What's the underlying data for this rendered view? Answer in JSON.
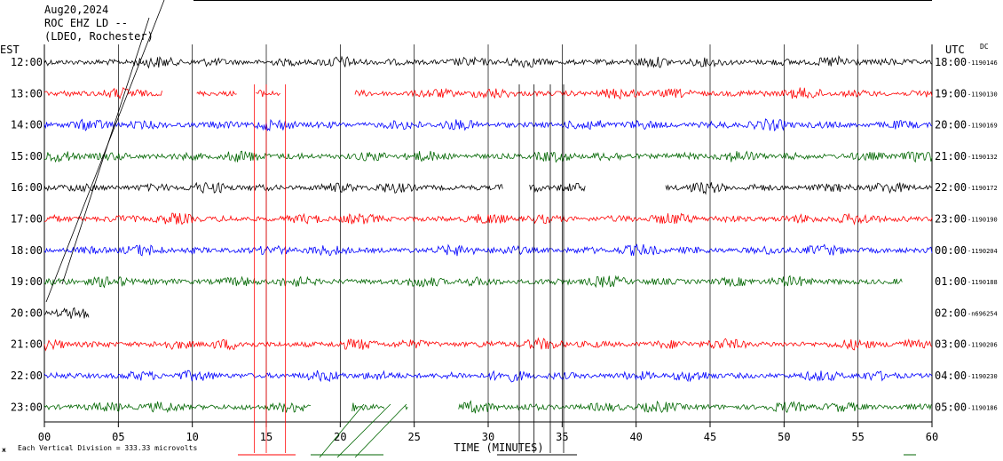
{
  "header": {
    "date": "Aug20,2024",
    "station": "ROC EHZ LD --",
    "network": "(LDEO, Rochester)"
  },
  "left_tz": "EST",
  "right_tz": "UTC",
  "dc_label": "DC",
  "footer": {
    "scale_note": "Each Vertical Division = 333.33 microvolts",
    "corner_mark": "ж"
  },
  "chart_data": {
    "type": "line",
    "title": "",
    "xlabel": "TIME (MINUTES)",
    "ylabel": "",
    "xlim": [
      0,
      60
    ],
    "x_ticks": [
      "00",
      "05",
      "10",
      "15",
      "20",
      "25",
      "30",
      "35",
      "40",
      "45",
      "50",
      "55",
      "60"
    ],
    "grid": true,
    "colors": [
      "#000000",
      "#ff0000",
      "#0000ff",
      "#006600"
    ],
    "traces": [
      {
        "est": "12:00",
        "utc": "18:00",
        "dc": "-1190146",
        "color": "#000000",
        "segments": [
          [
            0,
            60
          ]
        ]
      },
      {
        "est": "13:00",
        "utc": "19:00",
        "dc": "-1190130",
        "color": "#ff0000",
        "segments": [
          [
            0,
            8
          ],
          [
            10.3,
            13
          ],
          [
            14.3,
            16
          ],
          [
            21,
            60
          ]
        ]
      },
      {
        "est": "14:00",
        "utc": "20:00",
        "dc": "-1190169",
        "color": "#0000ff",
        "segments": [
          [
            0,
            60
          ]
        ]
      },
      {
        "est": "15:00",
        "utc": "21:00",
        "dc": "-1190132",
        "color": "#006600",
        "segments": [
          [
            0,
            60
          ]
        ]
      },
      {
        "est": "16:00",
        "utc": "22:00",
        "dc": "-1190172",
        "color": "#000000",
        "segments": [
          [
            0,
            31
          ],
          [
            32.8,
            36.6
          ],
          [
            42,
            60
          ]
        ]
      },
      {
        "est": "17:00",
        "utc": "23:00",
        "dc": "-1190190",
        "color": "#ff0000",
        "segments": [
          [
            0,
            60
          ]
        ]
      },
      {
        "est": "18:00",
        "utc": "00:00",
        "dc": "-1190204",
        "color": "#0000ff",
        "segments": [
          [
            0,
            60
          ]
        ]
      },
      {
        "est": "19:00",
        "utc": "01:00",
        "dc": "-1190188",
        "color": "#006600",
        "segments": [
          [
            0,
            58
          ]
        ]
      },
      {
        "est": "20:00",
        "utc": "02:00",
        "dc": "-n696254",
        "color": "#000000",
        "segments": [
          [
            0,
            3
          ]
        ]
      },
      {
        "est": "21:00",
        "utc": "03:00",
        "dc": "-1190206",
        "color": "#ff0000",
        "segments": [
          [
            0,
            60
          ]
        ]
      },
      {
        "est": "22:00",
        "utc": "04:00",
        "dc": "-1190230",
        "color": "#0000ff",
        "segments": [
          [
            0,
            60
          ]
        ]
      },
      {
        "est": "23:00",
        "utc": "05:00",
        "dc": "-1190186",
        "color": "#006600",
        "segments": [
          [
            0,
            18
          ],
          [
            20.8,
            23
          ],
          [
            24.4,
            24.6
          ],
          [
            28,
            60
          ]
        ]
      }
    ]
  }
}
